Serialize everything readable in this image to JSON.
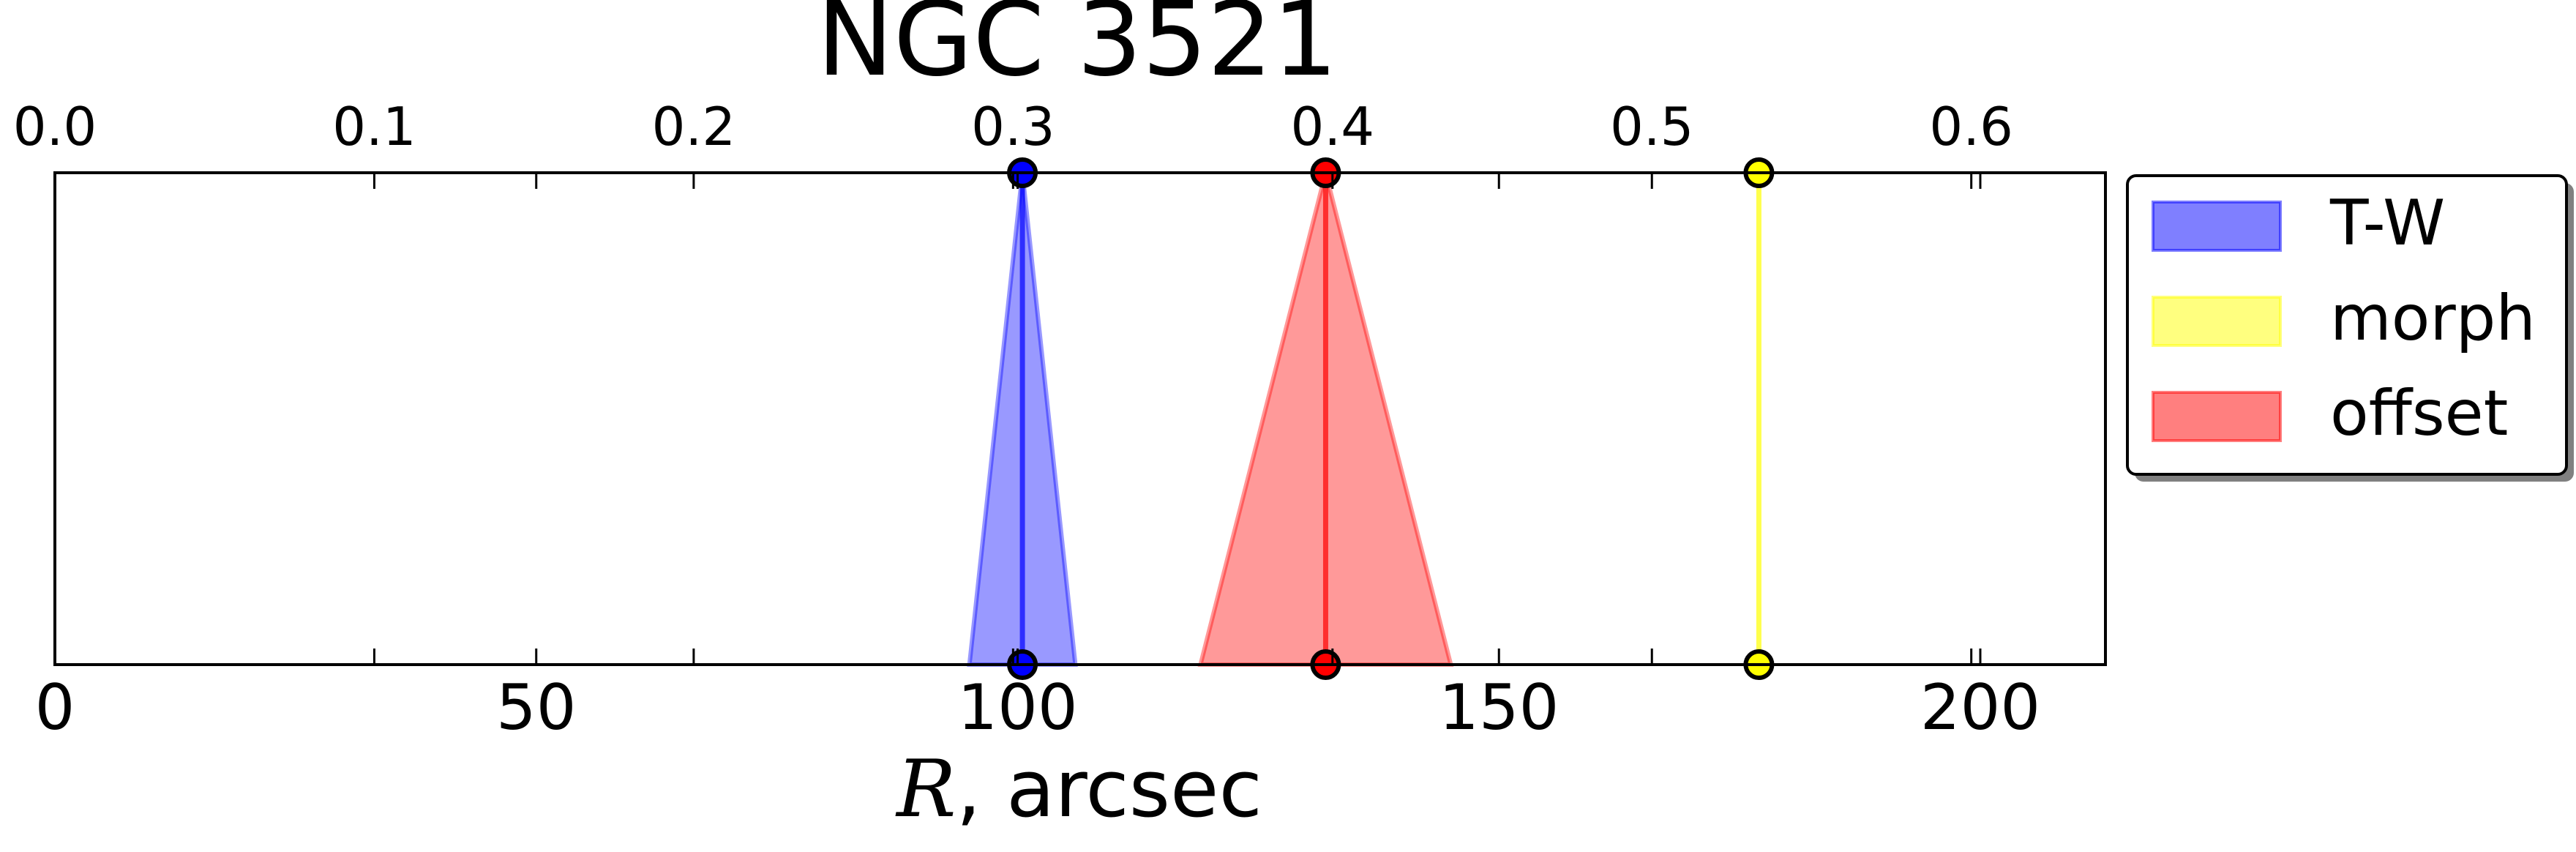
{
  "chart_data": {
    "type": "area",
    "title": "NGC 3521",
    "xlabel_math": "R",
    "xlabel_rest": ", arcsec",
    "xlim": [
      0,
      213
    ],
    "xticks": [
      0,
      50,
      100,
      150,
      200
    ],
    "x2lim": [
      0,
      0.642
    ],
    "x2ticks": [
      "0.0",
      "0.1",
      "0.2",
      "0.3",
      "0.4",
      "0.5",
      "0.6"
    ],
    "grid": false,
    "legend_position": "outside right, top",
    "series": [
      {
        "name": "T-W",
        "color": "#0000ff",
        "center": 100.5,
        "left": 95,
        "right": 106
      },
      {
        "name": "morph",
        "color": "#ffff00",
        "center": 177,
        "left": 177,
        "right": 177
      },
      {
        "name": "offset",
        "color": "#ff0000",
        "center": 132,
        "left": 119,
        "right": 145
      }
    ]
  }
}
